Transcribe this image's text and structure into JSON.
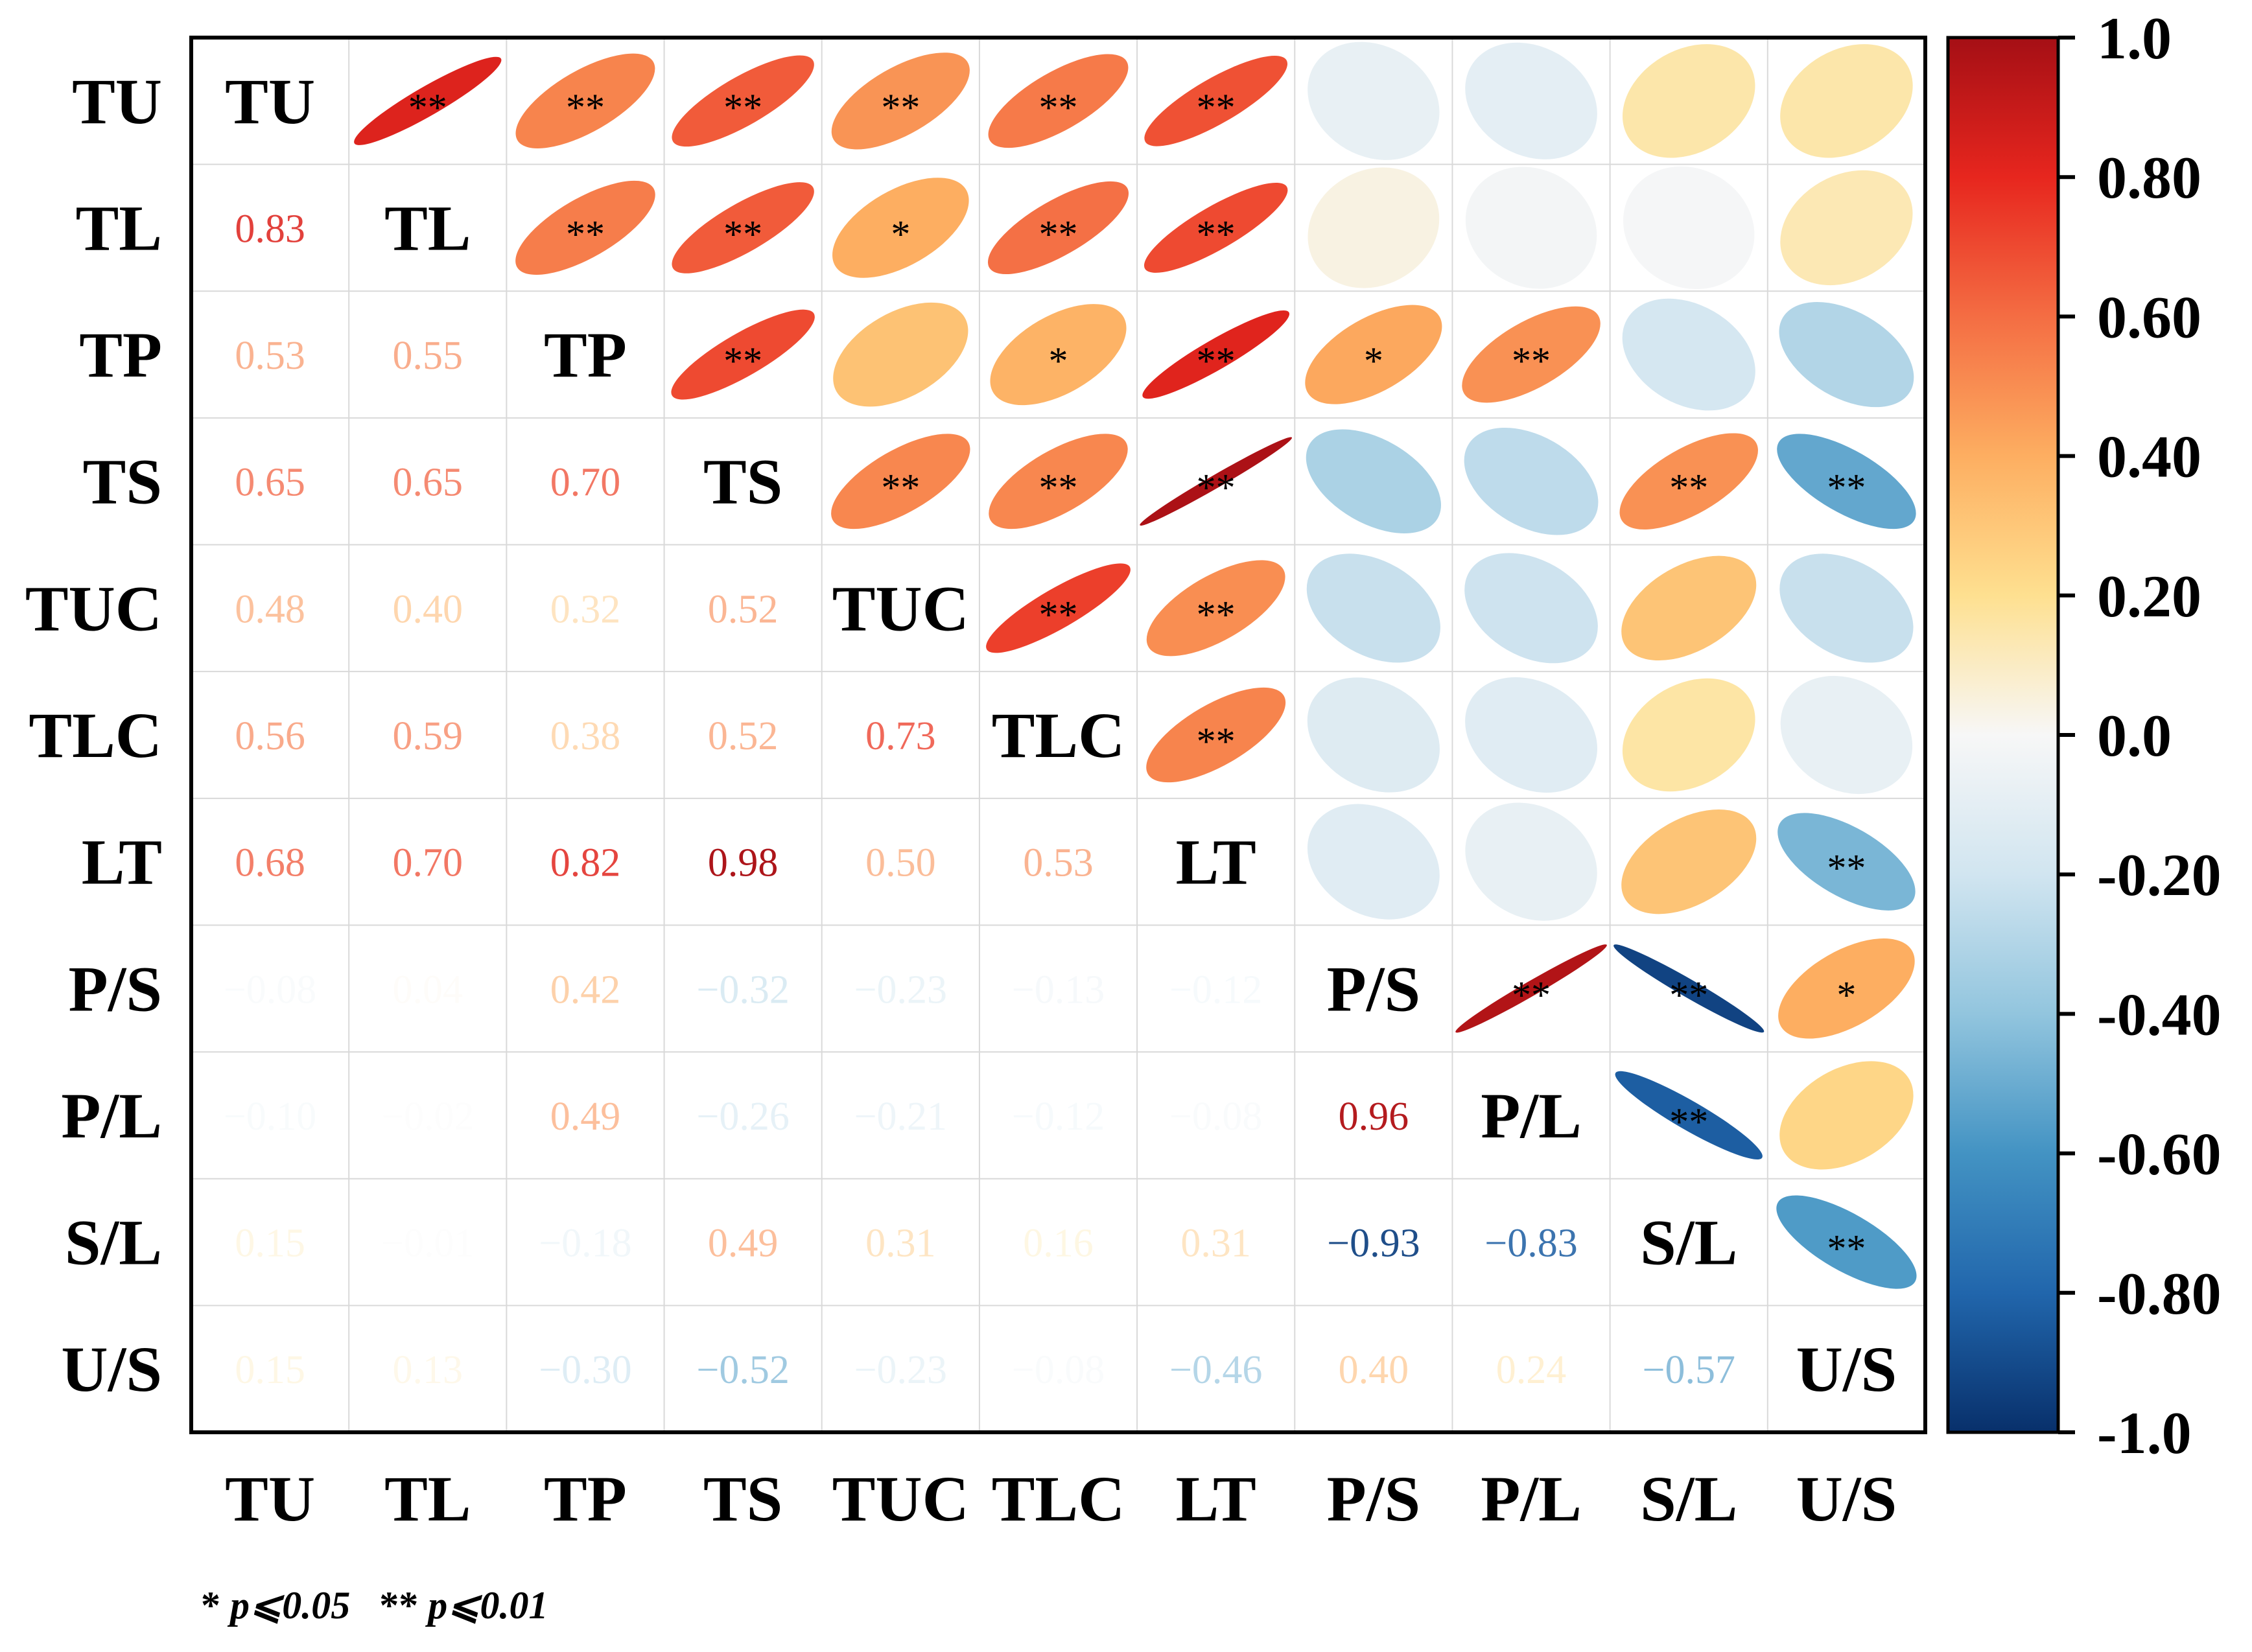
{
  "chart_data": {
    "type": "heatmap",
    "variables": [
      "TU",
      "TL",
      "TP",
      "TS",
      "TUC",
      "TLC",
      "LT",
      "P/S",
      "P/L",
      "S/L",
      "U/S"
    ],
    "lower_values": [
      [],
      [
        "0.83"
      ],
      [
        "0.53",
        "0.55"
      ],
      [
        "0.65",
        "0.65",
        "0.70"
      ],
      [
        "0.48",
        "0.40",
        "0.32",
        "0.52"
      ],
      [
        "0.56",
        "0.59",
        "0.38",
        "0.52",
        "0.73"
      ],
      [
        "0.68",
        "0.70",
        "0.82",
        "0.98",
        "0.50",
        "0.53"
      ],
      [
        "−0.08",
        "0.04",
        "0.42",
        "−0.32",
        "−0.23",
        "−0.13",
        "−0.12"
      ],
      [
        "−0.10",
        "−0.02",
        "0.49",
        "−0.26",
        "−0.21",
        "−0.12",
        "−0.08",
        "0.96"
      ],
      [
        "0.15",
        "−0.01",
        "−0.18",
        "0.49",
        "0.31",
        "0.16",
        "0.31",
        "−0.93",
        "−0.83"
      ],
      [
        "0.15",
        "0.13",
        "−0.30",
        "−0.52",
        "−0.23",
        "−0.08",
        "−0.46",
        "0.40",
        "0.24",
        "−0.57"
      ]
    ],
    "significance": [
      [
        "",
        "**",
        "**",
        "**",
        "**",
        "**",
        "**",
        "",
        "",
        "",
        ""
      ],
      [
        "",
        "",
        "**",
        "**",
        "*",
        "**",
        "**",
        "",
        "",
        "",
        ""
      ],
      [
        "",
        "",
        "",
        "**",
        "",
        "*",
        "**",
        "*",
        "**",
        "",
        ""
      ],
      [
        "",
        "",
        "",
        "",
        "**",
        "**",
        "**",
        "",
        "",
        "**",
        "**"
      ],
      [
        "",
        "",
        "",
        "",
        "",
        "**",
        "**",
        "",
        "",
        "",
        ""
      ],
      [
        "",
        "",
        "",
        "",
        "",
        "",
        "**",
        "",
        "",
        "",
        ""
      ],
      [
        "",
        "",
        "",
        "",
        "",
        "",
        "",
        "",
        "",
        "",
        "**"
      ],
      [
        "",
        "",
        "",
        "",
        "",
        "",
        "",
        "",
        "**",
        "**",
        "*"
      ],
      [
        "",
        "",
        "",
        "",
        "",
        "",
        "",
        "",
        "",
        "**",
        ""
      ],
      [
        "",
        "",
        "",
        "",
        "",
        "",
        "",
        "",
        "",
        "",
        "**"
      ],
      [
        "",
        "",
        "",
        "",
        "",
        "",
        "",
        "",
        "",
        "",
        ""
      ]
    ],
    "colorbar": {
      "range": [
        -1.0,
        1.0
      ],
      "tick_labels": [
        "1.0",
        "0.80",
        "0.60",
        "0.40",
        "0.20",
        "0.0",
        "-0.20",
        "-0.40",
        "-0.60",
        "-0.80",
        "-1.0"
      ],
      "colors": [
        "#08306b",
        "#2166ac",
        "#4393c3",
        "#92c5de",
        "#d1e5f0",
        "#f7f7f7",
        "#fee090",
        "#fdae61",
        "#f46d43",
        "#e7261e",
        "#a50f15"
      ]
    },
    "legend": {
      "single_star": "*",
      "single_text": "p⩽0.05",
      "double_star": "**",
      "double_text": "p⩽0.01"
    }
  }
}
